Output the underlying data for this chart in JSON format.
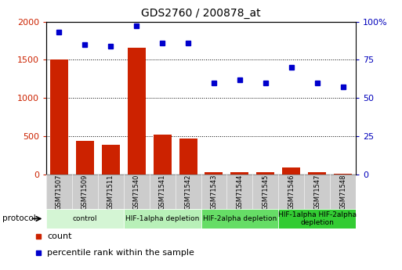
{
  "title": "GDS2760 / 200878_at",
  "samples": [
    "GSM71507",
    "GSM71509",
    "GSM71511",
    "GSM71540",
    "GSM71541",
    "GSM71542",
    "GSM71543",
    "GSM71544",
    "GSM71545",
    "GSM71546",
    "GSM71547",
    "GSM71548"
  ],
  "counts": [
    1500,
    440,
    380,
    1660,
    520,
    470,
    30,
    30,
    30,
    90,
    30,
    10
  ],
  "percentiles": [
    93,
    85,
    84,
    97,
    86,
    86,
    60,
    62,
    60,
    70,
    60,
    57
  ],
  "ylim_left": [
    0,
    2000
  ],
  "ylim_right": [
    0,
    100
  ],
  "yticks_left": [
    0,
    500,
    1000,
    1500,
    2000
  ],
  "yticks_right": [
    0,
    25,
    50,
    75,
    100
  ],
  "bar_color": "#cc2200",
  "dot_color": "#0000cc",
  "protocols": [
    {
      "label": "control",
      "start": 0,
      "end": 3,
      "color": "#d4f5d4"
    },
    {
      "label": "HIF-1alpha depletion",
      "start": 3,
      "end": 6,
      "color": "#b8f0b8"
    },
    {
      "label": "HIF-2alpha depletion",
      "start": 6,
      "end": 9,
      "color": "#66dd66"
    },
    {
      "label": "HIF-1alpha HIF-2alpha\ndepletion",
      "start": 9,
      "end": 12,
      "color": "#33cc33"
    }
  ],
  "legend_count_label": "count",
  "legend_pct_label": "percentile rank within the sample",
  "xlabel_protocol": "protocol",
  "tick_color_left": "#cc2200",
  "tick_color_right": "#0000bb",
  "sample_box_color": "#cccccc",
  "sample_box_edge": "#aaaaaa"
}
